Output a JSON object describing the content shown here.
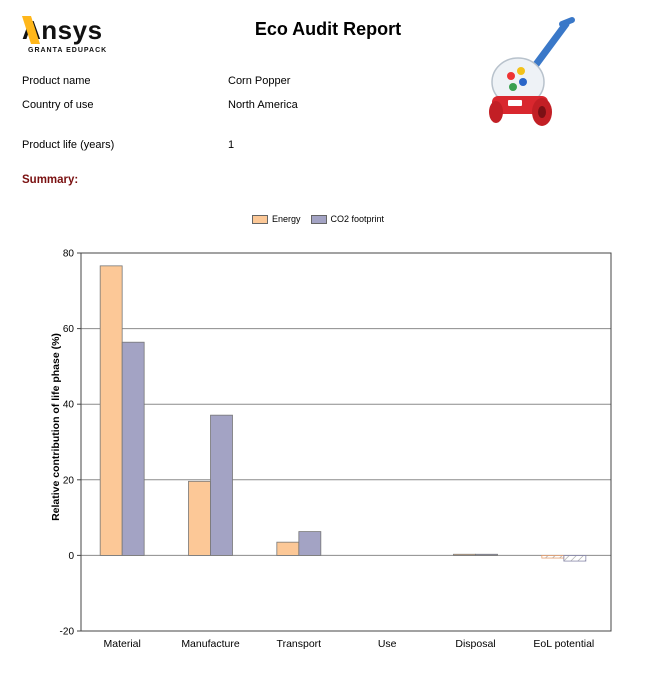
{
  "header": {
    "logo_text": "Ansys",
    "logo_subtext": "GRANTA EDUPACK",
    "title": "Eco Audit Report"
  },
  "product": {
    "name_label": "Product name",
    "name_value": "Corn Popper",
    "country_label": "Country of use",
    "country_value": "North America",
    "life_label": "Product life (years)",
    "life_value": "1"
  },
  "summary_label": "Summary:",
  "colors": {
    "energy": "#fcc897",
    "co2": "#a3a3c4",
    "summary_text": "#7a1010"
  },
  "chart_data": {
    "type": "bar",
    "categories": [
      "Material",
      "Manufacture",
      "Transport",
      "Use",
      "Disposal",
      "EoL potential"
    ],
    "series": [
      {
        "name": "Energy",
        "values": [
          76.6,
          19.6,
          3.5,
          0,
          0.3,
          -0.7
        ]
      },
      {
        "name": "CO2 footprint",
        "values": [
          56.4,
          37.1,
          6.3,
          0,
          0.3,
          -1.5
        ]
      }
    ],
    "title": "",
    "xlabel": "",
    "ylabel": "Relative contribution of life phase (%)",
    "ylim": [
      -20,
      80
    ],
    "yticks": [
      -20,
      0,
      20,
      40,
      60,
      80
    ],
    "grid": true,
    "legend_position": "top-center",
    "eol_hatched": true
  }
}
